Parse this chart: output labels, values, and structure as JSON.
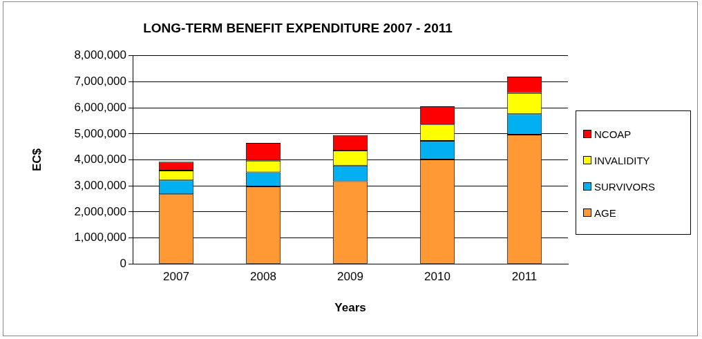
{
  "chart_data": {
    "type": "bar",
    "title": "LONG-TERM BENEFIT EXPENDITURE 2007 - 2011",
    "xlabel": "Years",
    "ylabel": "EC$",
    "categories": [
      "2007",
      "2008",
      "2009",
      "2010",
      "2011"
    ],
    "stacked": true,
    "series": [
      {
        "name": "AGE",
        "color": "#ff9933",
        "values": [
          2680000,
          2980000,
          3180000,
          4010000,
          4970000
        ]
      },
      {
        "name": "SURVIVORS",
        "color": "#00b0f0",
        "values": [
          530000,
          540000,
          600000,
          720000,
          790000
        ]
      },
      {
        "name": "INVALIDITY",
        "color": "#ffff00",
        "values": [
          380000,
          450000,
          580000,
          630000,
          810000
        ]
      },
      {
        "name": "NCOAP",
        "color": "#ff0000",
        "values": [
          340000,
          680000,
          590000,
          700000,
          630000
        ]
      }
    ],
    "ylim": [
      0,
      8000000
    ],
    "yticks": [
      0,
      {
        "value": 1000000,
        "label": "1,000,000"
      },
      {
        "value": 2000000,
        "label": "2,000,000"
      },
      {
        "value": 3000000,
        "label": "3,000,000"
      },
      {
        "value": 4000000,
        "label": "4,000,000"
      },
      {
        "value": 5000000,
        "label": "5,000,000"
      },
      {
        "value": 6000000,
        "label": "6,000,000"
      },
      {
        "value": 7000000,
        "label": "7,000,000"
      },
      {
        "value": 8000000,
        "label": "8,000,000"
      }
    ],
    "grid": "y",
    "legend": "right"
  }
}
